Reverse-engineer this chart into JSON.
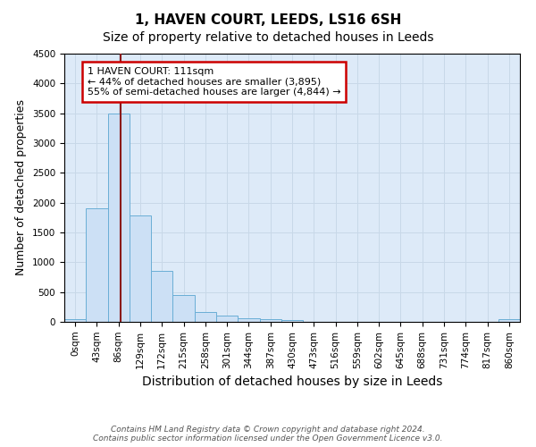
{
  "title": "1, HAVEN COURT, LEEDS, LS16 6SH",
  "subtitle": "Size of property relative to detached houses in Leeds",
  "xlabel": "Distribution of detached houses by size in Leeds",
  "ylabel": "Number of detached properties",
  "bar_labels": [
    "0sqm",
    "43sqm",
    "86sqm",
    "129sqm",
    "172sqm",
    "215sqm",
    "258sqm",
    "301sqm",
    "344sqm",
    "387sqm",
    "430sqm",
    "473sqm",
    "516sqm",
    "559sqm",
    "602sqm",
    "645sqm",
    "688sqm",
    "731sqm",
    "774sqm",
    "817sqm",
    "860sqm"
  ],
  "bar_values": [
    50,
    1900,
    3500,
    1780,
    850,
    450,
    170,
    105,
    60,
    40,
    30,
    0,
    0,
    0,
    0,
    0,
    0,
    0,
    0,
    0,
    40
  ],
  "bar_color": "#cce0f5",
  "bar_edge_color": "#6aaed6",
  "grid_color": "#c8d8e8",
  "ylim": [
    0,
    4500
  ],
  "yticks": [
    0,
    500,
    1000,
    1500,
    2000,
    2500,
    3000,
    3500,
    4000,
    4500
  ],
  "property_bin_index": 2,
  "vline_color": "#8b1a1a",
  "annotation_text": "1 HAVEN COURT: 111sqm\n← 44% of detached houses are smaller (3,895)\n55% of semi-detached houses are larger (4,844) →",
  "annotation_box_color": "#ffffff",
  "annotation_box_edge_color": "#cc0000",
  "footnote": "Contains HM Land Registry data © Crown copyright and database right 2024.\nContains public sector information licensed under the Open Government Licence v3.0.",
  "bg_color": "#ffffff",
  "plot_bg_color": "#ddeaf8",
  "title_fontsize": 11,
  "subtitle_fontsize": 10,
  "xlabel_fontsize": 10,
  "ylabel_fontsize": 9,
  "tick_fontsize": 7.5,
  "footnote_fontsize": 6.5
}
